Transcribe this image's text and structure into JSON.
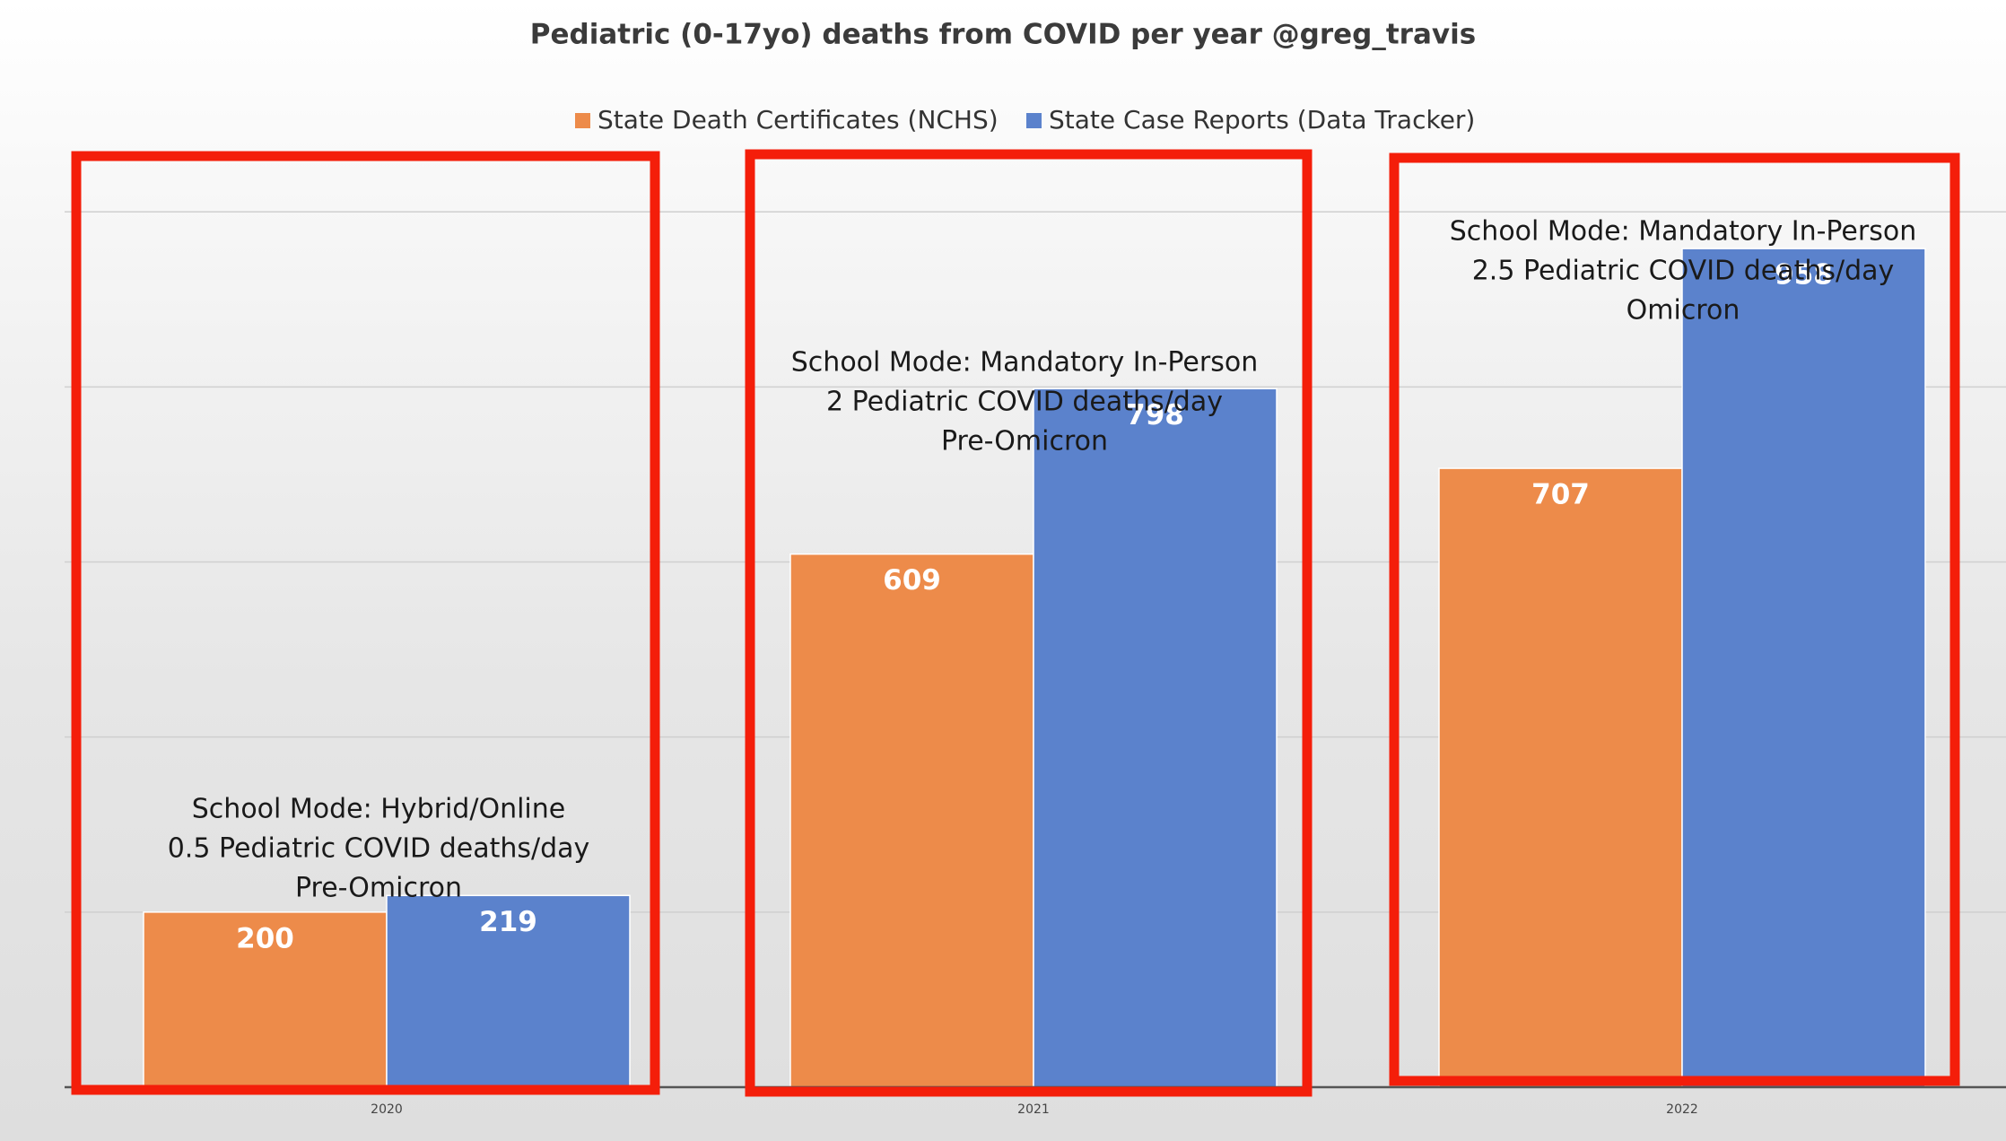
{
  "chart_data": {
    "type": "bar",
    "title": "Pediatric (0-17yo) deaths from COVID per year @greg_travis",
    "xlabel": "",
    "ylabel": "",
    "categories": [
      "2020",
      "2021",
      "2022"
    ],
    "series": [
      {
        "name": "State Death Certificates (NCHS)",
        "values": [
          200,
          609,
          707
        ],
        "color": "#ED8B4A"
      },
      {
        "name": "State Case Reports (Data Tracker)",
        "values": [
          219,
          798,
          958
        ],
        "color": "#5B82CC"
      }
    ],
    "ylim": [
      0,
      1200
    ],
    "grid": true,
    "legend_position": "top-center",
    "data_labels": true,
    "annotations": [
      {
        "category": "2020",
        "lines": [
          "School Mode: Hybrid/Online",
          "0.5 Pediatric COVID deaths/day",
          "Pre-Omicron"
        ]
      },
      {
        "category": "2021",
        "lines": [
          "School Mode: Mandatory In-Person",
          "2 Pediatric COVID deaths/day",
          "Pre-Omicron"
        ]
      },
      {
        "category": "2022",
        "lines": [
          "School Mode: Mandatory In-Person",
          "2.5 Pediatric COVID deaths/day",
          "Omicron"
        ]
      }
    ],
    "highlight_box_color": "#F41E0A"
  }
}
